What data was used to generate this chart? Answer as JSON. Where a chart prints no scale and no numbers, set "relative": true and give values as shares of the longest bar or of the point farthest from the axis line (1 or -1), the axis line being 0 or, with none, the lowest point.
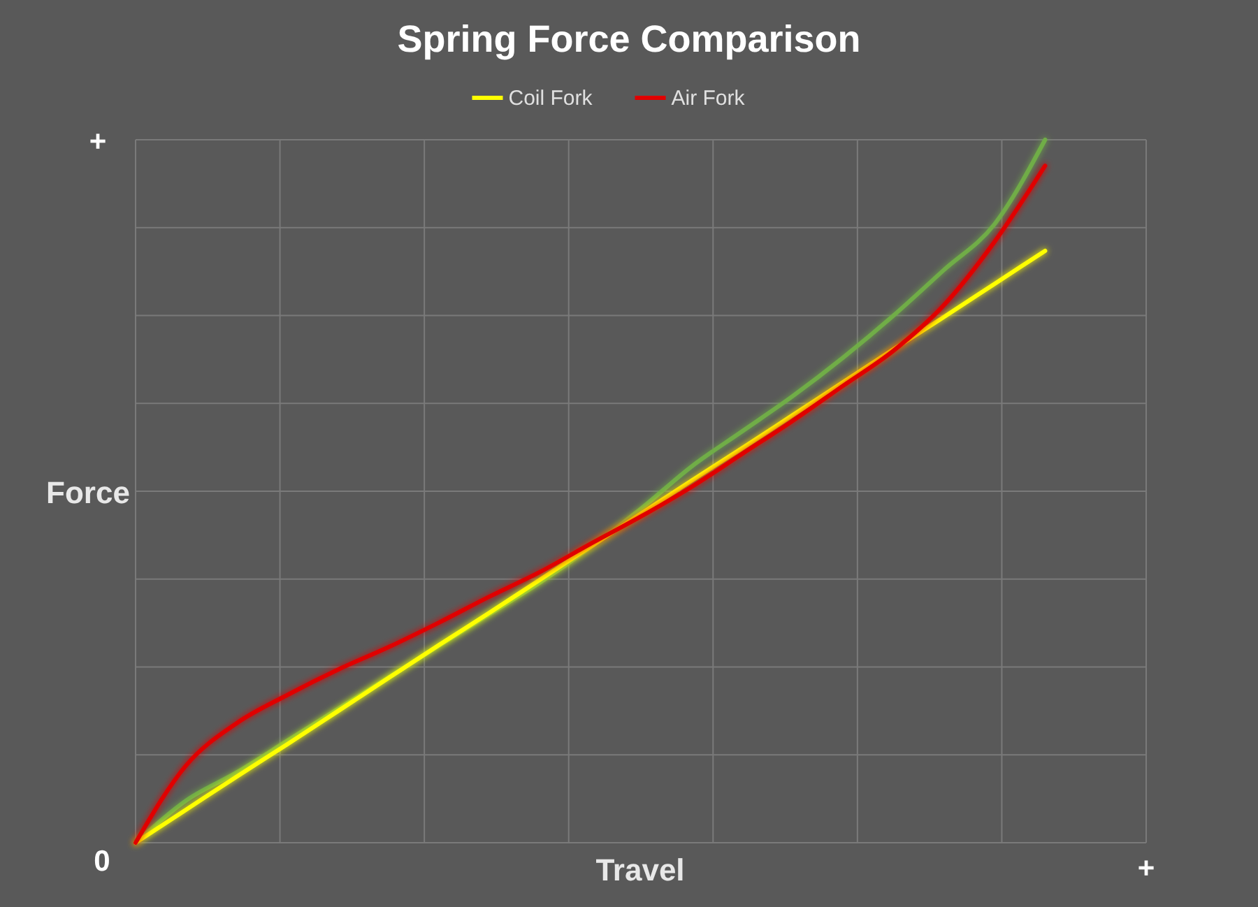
{
  "chart_data": {
    "type": "line",
    "title": "Spring Force Comparison",
    "xlabel": "Travel",
    "ylabel": "Force",
    "relative": true,
    "grid": true,
    "legend": "top",
    "line_style": "solid",
    "annotations": [
      "+",
      "0",
      "+"
    ],
    "categories": [
      null,
      null,
      null,
      null,
      null,
      null,
      null,
      null,
      null,
      null,
      null,
      null,
      null,
      null,
      null,
      null,
      null,
      null,
      null,
      null,
      null
    ],
    "series": [
      {
        "color": "#70ad47",
        "values": [
          0,
          0.06,
          0.1,
          0.145,
          0.19,
          0.235,
          0.28,
          0.325,
          0.37,
          0.42,
          0.475,
          0.535,
          0.585,
          0.635,
          0.69,
          0.75,
          0.815,
          0.88,
          1,
          null,
          null
        ]
      },
      {
        "name": "Coil Fork",
        "color": "#ffff00",
        "values": [
          0,
          0.047,
          0.094,
          0.14,
          0.187,
          0.234,
          0.281,
          0.327,
          0.374,
          0.421,
          0.468,
          0.515,
          0.561,
          0.608,
          0.655,
          0.702,
          0.748,
          0.795,
          0.842,
          null,
          null
        ]
      },
      {
        "name": "Air Fork",
        "color": "#e00000",
        "values": [
          0,
          0.11,
          0.17,
          0.21,
          0.246,
          0.278,
          0.313,
          0.35,
          0.385,
          0.425,
          0.464,
          0.506,
          0.553,
          0.6,
          0.65,
          0.7,
          0.765,
          0.855,
          0.963,
          null,
          null
        ]
      }
    ]
  }
}
